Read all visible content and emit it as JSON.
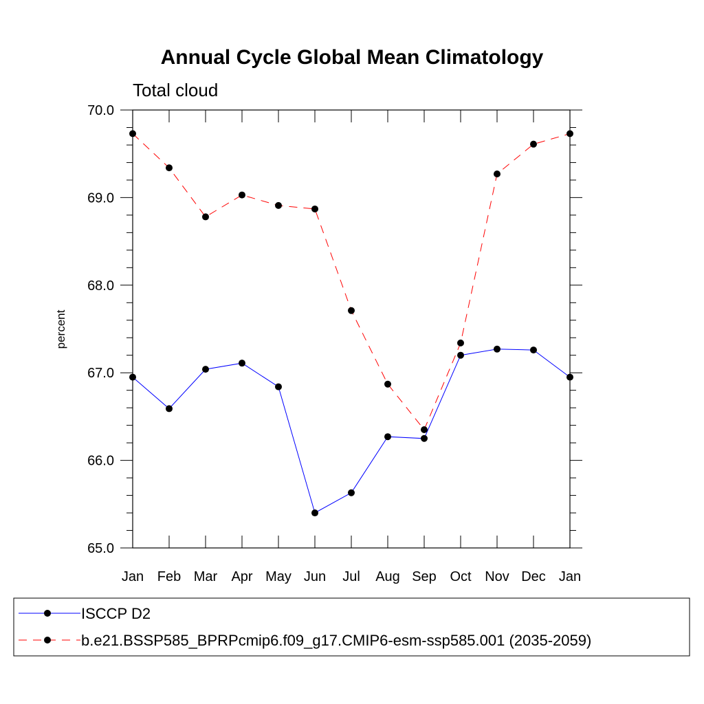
{
  "chart_data": {
    "type": "line",
    "title": "Annual Cycle Global Mean Climatology",
    "subtitle": "Total cloud",
    "xlabel": "",
    "ylabel": "percent",
    "categories": [
      "Jan",
      "Feb",
      "Mar",
      "Apr",
      "May",
      "Jun",
      "Jul",
      "Aug",
      "Sep",
      "Oct",
      "Nov",
      "Dec",
      "Jan"
    ],
    "ylim": [
      65.0,
      70.0
    ],
    "yticks": [
      "65.0",
      "66.0",
      "67.0",
      "68.0",
      "69.0",
      "70.0"
    ],
    "ytick_values": [
      65.0,
      66.0,
      67.0,
      68.0,
      69.0,
      70.0
    ],
    "series": [
      {
        "name": "ISCCP D2",
        "color": "#0000ff",
        "dash": "solid",
        "values": [
          66.95,
          66.59,
          67.04,
          67.11,
          66.84,
          65.4,
          65.63,
          66.27,
          66.25,
          67.2,
          67.27,
          67.26,
          66.95
        ]
      },
      {
        "name": "b.e21.BSSP585_BPRPcmip6.f09_g17.CMIP6-esm-ssp585.001 (2035-2059)",
        "color": "#ff0000",
        "dash": "dashed",
        "values": [
          69.73,
          69.34,
          68.78,
          69.03,
          68.91,
          68.87,
          67.71,
          66.87,
          66.35,
          67.34,
          69.27,
          69.61,
          69.73
        ]
      }
    ],
    "legend_position": "bottom"
  }
}
